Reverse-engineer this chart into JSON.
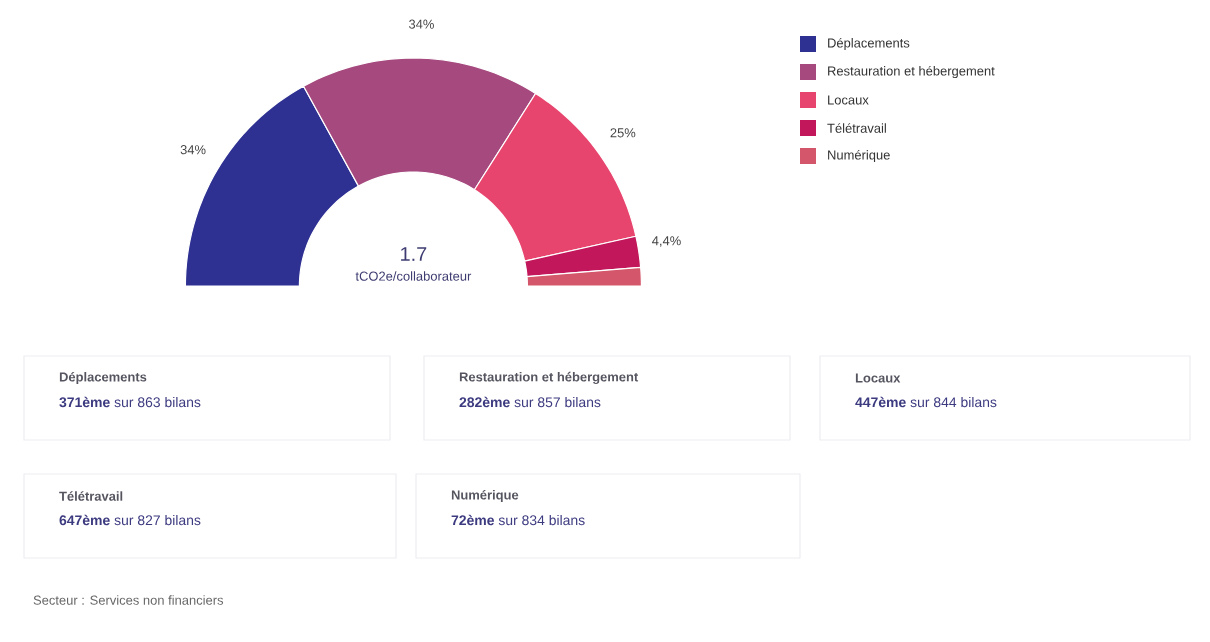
{
  "chart_data": [
    {
      "type": "donut",
      "categories": [
        "Déplacements",
        "Restauration et hébergement",
        "Locaux",
        "Télétravail",
        "Numérique"
      ],
      "values": [
        34,
        34,
        25,
        4.4,
        2.6
      ],
      "colors": [
        "#2e3192",
        "#a5497e",
        "#e8456e",
        "#c2185b",
        "#d4566a"
      ],
      "value_labels": [
        "34%",
        "34%",
        "25%",
        "4,4%",
        null
      ],
      "annotations": [
        "1.7",
        "tCO2e/collaborateur"
      ],
      "legend": "right"
    },
    {
      "type": "other",
      "annotations": [
        "Déplacements",
        "**371ème** sur 863 bilans",
        "Restauration et hébergement",
        "**282ème** sur 857 bilans",
        "Locaux",
        "**447ème** sur 844 bilans",
        "Télétravail",
        "**647ème** sur 827 bilans",
        "Numérique",
        "**72ème** sur 834 bilans",
        "Secteur : Services non financiers"
      ]
    }
  ]
}
